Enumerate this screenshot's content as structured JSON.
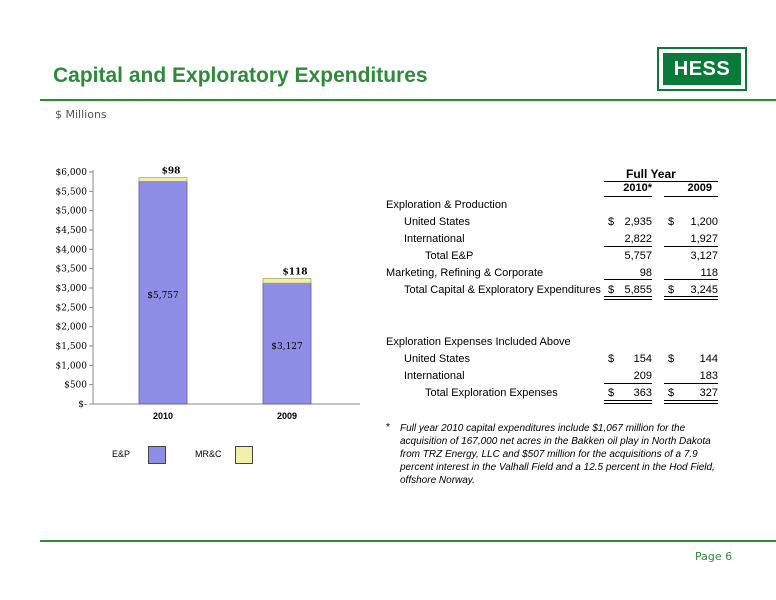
{
  "header": {
    "title": "Capital and Exploratory Expenditures",
    "logo_text": "HESS",
    "units": "$ Millions"
  },
  "colors": {
    "accent": "#2e8b3a",
    "ep": "#8e8ee6",
    "mrc": "#f2f0a8"
  },
  "chart_data": {
    "type": "bar",
    "stacked": true,
    "categories": [
      "2010",
      "2009"
    ],
    "series": [
      {
        "name": "E&P",
        "values": [
          5757,
          3127
        ],
        "labels": [
          "$5,757",
          "$3,127"
        ]
      },
      {
        "name": "MR&C",
        "values": [
          98,
          118
        ],
        "labels": [
          "$98",
          "$118"
        ]
      }
    ],
    "ylim": [
      0,
      6000
    ],
    "yticks": [
      "$-",
      "$500",
      "$1,000",
      "$1,500",
      "$2,000",
      "$2,500",
      "$3,000",
      "$3,500",
      "$4,000",
      "$4,500",
      "$5,000",
      "$5,500",
      "$6,000"
    ],
    "grid": false,
    "legend": "bottom"
  },
  "legend": [
    {
      "label": "E&P"
    },
    {
      "label": "MR&C"
    }
  ],
  "table": {
    "group_header": "Full Year",
    "col_2010": "2010*",
    "col_2009": "2009",
    "section1": "Exploration & Production",
    "rows": [
      {
        "label": "United States",
        "d1": "$",
        "v1": "2,935",
        "d2": "$",
        "v2": "1,200"
      },
      {
        "label": "International",
        "d1": "",
        "v1": "2,822",
        "d2": "",
        "v2": "1,927"
      },
      {
        "label": "Total E&P",
        "d1": "",
        "v1": "5,757",
        "d2": "",
        "v2": "3,127"
      },
      {
        "label": "Marketing, Refining & Corporate",
        "d1": "",
        "v1": "98",
        "d2": "",
        "v2": "118"
      },
      {
        "label": "Total Capital & Exploratory Expenditures",
        "d1": "$",
        "v1": "5,855",
        "d2": "$",
        "v2": "3,245"
      }
    ],
    "section2": "Exploration Expenses Included Above",
    "rows2": [
      {
        "label": "United States",
        "d1": "$",
        "v1": "154",
        "d2": "$",
        "v2": "144"
      },
      {
        "label": "International",
        "d1": "",
        "v1": "209",
        "d2": "",
        "v2": "183"
      },
      {
        "label": "Total Exploration Expenses",
        "d1": "$",
        "v1": "363",
        "d2": "$",
        "v2": "327"
      }
    ]
  },
  "footnote": {
    "star": "*",
    "text": "Full year 2010 capital expenditures include $1,067 million for the acquisition of 167,000 net acres in the Bakken oil play in North Dakota from TRZ Energy, LLC and $507 million for the acquisitions of a 7.9 percent interest in the Valhall Field and a 12.5 percent in the Hod Field, offshore Norway."
  },
  "footer": {
    "page": "Page 6"
  }
}
